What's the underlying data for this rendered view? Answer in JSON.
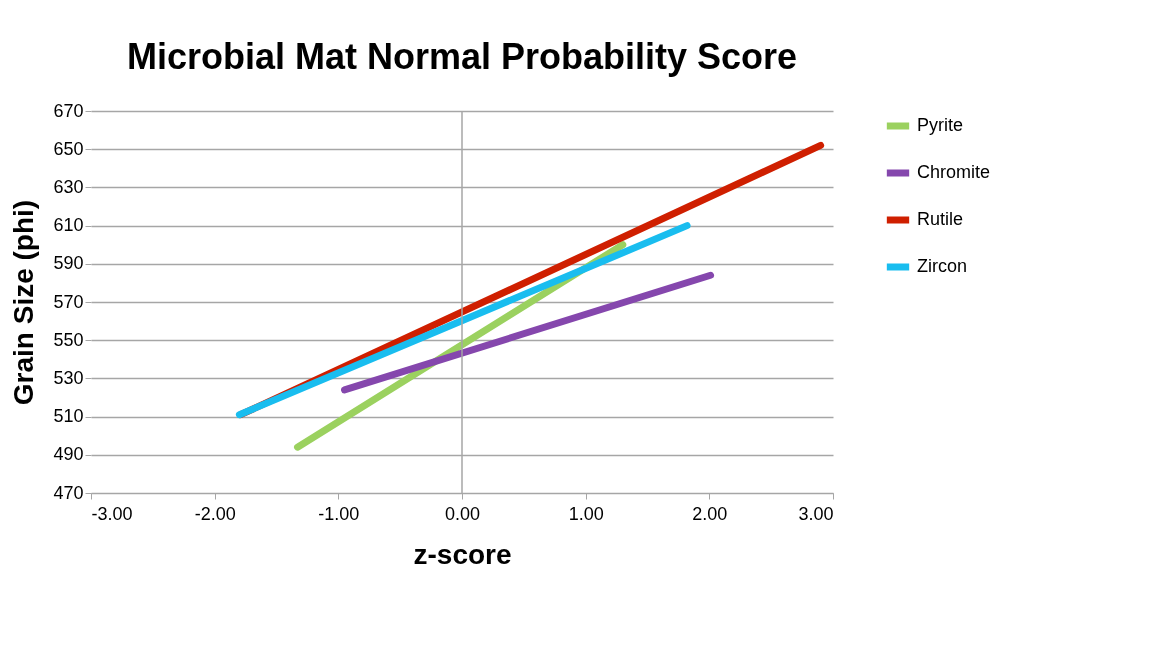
{
  "chart_data": {
    "type": "line",
    "title": "Microbial Mat Normal Probability Score",
    "xlabel": "z-score",
    "ylabel": "Grain Size (phi)",
    "series": [
      {
        "name": "Pyrite",
        "color": "#9bd15f",
        "x": [
          -1.33,
          1.3
        ],
        "values": [
          494,
          600
        ]
      },
      {
        "name": "Chromite",
        "color": "#8547ad",
        "x": [
          -0.95,
          2.01
        ],
        "values": [
          524,
          584
        ]
      },
      {
        "name": "Rutile",
        "color": "#cf1f00",
        "x": [
          -1.79,
          2.9
        ],
        "values": [
          511,
          652
        ]
      },
      {
        "name": "Zircon",
        "color": "#19bdef",
        "x": [
          -1.8,
          1.82
        ],
        "values": [
          511,
          610
        ]
      }
    ],
    "xlim": [
      -3,
      3
    ],
    "xticks": [
      {
        "value": -3,
        "label": "-3.00"
      },
      {
        "value": -2,
        "label": "-2.00"
      },
      {
        "value": -1,
        "label": "-1.00"
      },
      {
        "value": 0,
        "label": "0.00"
      },
      {
        "value": 1,
        "label": "1.00"
      },
      {
        "value": 2,
        "label": "2.00"
      },
      {
        "value": 3,
        "label": "3.00"
      }
    ],
    "ylim": [
      470,
      670
    ],
    "yticks": [
      470,
      490,
      510,
      530,
      550,
      570,
      590,
      610,
      630,
      650,
      670
    ],
    "ref_lines": [
      {
        "axis": "x",
        "value": 0,
        "color": "#a6a6a6"
      }
    ],
    "grid": "y",
    "legend": "right",
    "marker": "none",
    "line_style": "solid"
  }
}
